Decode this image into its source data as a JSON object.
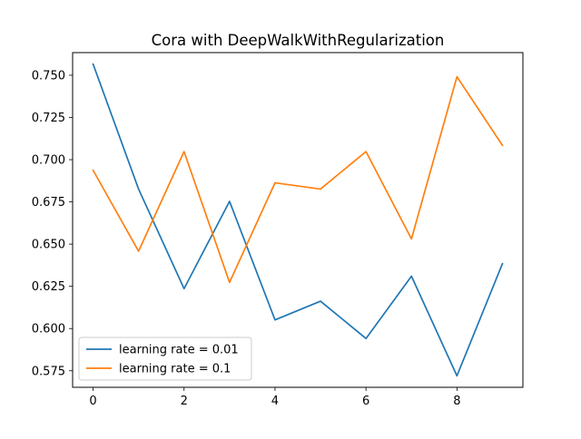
{
  "chart_data": {
    "type": "line",
    "title": "Cora with DeepWalkWithRegularization",
    "xlabel": "",
    "ylabel": "",
    "x": [
      0,
      1,
      2,
      3,
      4,
      5,
      6,
      7,
      8,
      9
    ],
    "xticks": [
      "0",
      "2",
      "4",
      "6",
      "8"
    ],
    "yticks": [
      "0.575",
      "0.600",
      "0.625",
      "0.650",
      "0.675",
      "0.700",
      "0.725",
      "0.750"
    ],
    "xlim": [
      -0.45,
      9.45
    ],
    "ylim": [
      0.5652,
      0.7634
    ],
    "grid": false,
    "legend_position": "lower-left",
    "series": [
      {
        "name": "learning rate = 0.01",
        "color": "#1f77b4",
        "values": [
          0.7566,
          0.6826,
          0.6236,
          0.6753,
          0.6051,
          0.6162,
          0.5941,
          0.631,
          0.572,
          0.6384
        ]
      },
      {
        "name": "learning rate = 0.1",
        "color": "#ff7f0e",
        "values": [
          0.6937,
          0.6458,
          0.7048,
          0.6273,
          0.6863,
          0.6826,
          0.7048,
          0.6531,
          0.7491,
          0.7085
        ]
      }
    ]
  }
}
